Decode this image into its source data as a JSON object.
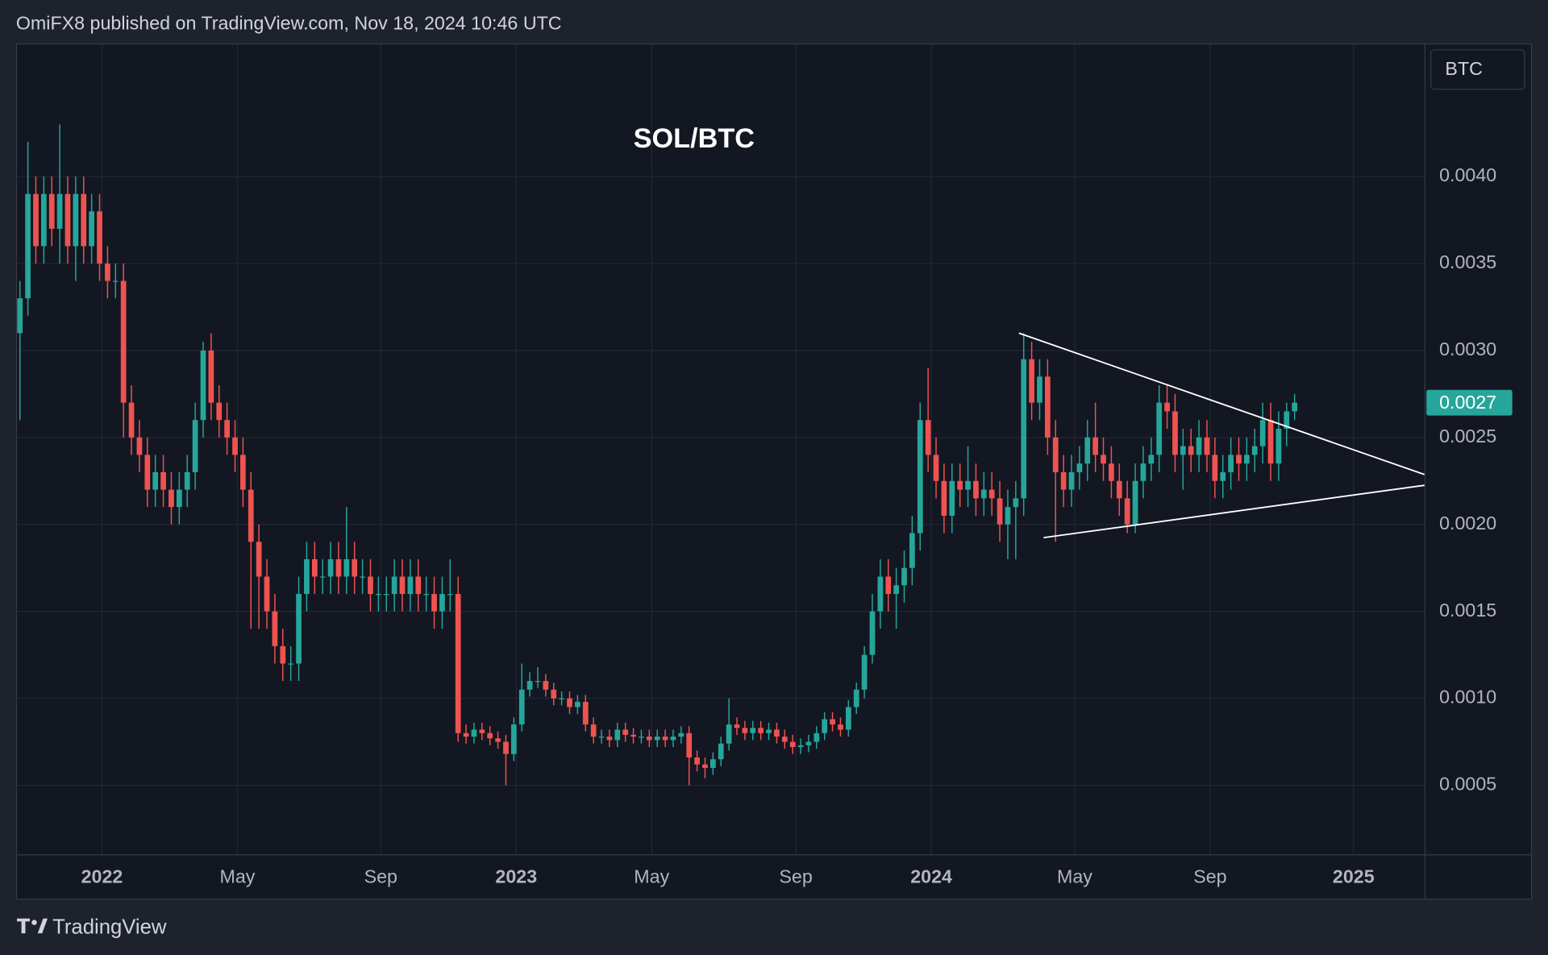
{
  "header": "OmiFX8 published on TradingView.com, Nov 18, 2024 10:46 UTC",
  "footer": "TradingView",
  "currency_button": "BTC",
  "chart_data": {
    "type": "candlestick",
    "title": "SOL/BTC",
    "up_color": "#26a69a",
    "down_color": "#ef5350",
    "grid": true,
    "xlim": [
      -0.37,
      176.3
    ],
    "xticks": [
      {
        "value": 10.3,
        "label": "2022"
      },
      {
        "value": 27.3,
        "label": "May"
      },
      {
        "value": 45.3,
        "label": "Sep"
      },
      {
        "value": 62.3,
        "label": "2023"
      },
      {
        "value": 79.3,
        "label": "May"
      },
      {
        "value": 97.4,
        "label": "Sep"
      },
      {
        "value": 114.4,
        "label": "2024"
      },
      {
        "value": 132.4,
        "label": "May"
      },
      {
        "value": 149.4,
        "label": "Sep"
      },
      {
        "value": 167.4,
        "label": "2025"
      }
    ],
    "ylim": [
      0.000103,
      0.00476
    ],
    "yticks": [
      0.0005,
      {
        "value": 0.001,
        "label": "0.0010"
      },
      0.0015,
      {
        "value": 0.002,
        "label": "0.0020"
      },
      0.0025,
      {
        "value": 0.003,
        "label": "0.0030"
      },
      0.0035,
      {
        "value": 0.004,
        "label": "0.0040"
      }
    ],
    "last_price": 0.0027,
    "open": [
      0.0031,
      0.0033,
      0.0039,
      0.0036,
      0.0039,
      0.0037,
      0.0039,
      0.0036,
      0.0039,
      0.0036,
      0.0038,
      0.0035,
      0.0034,
      0.0034,
      0.0027,
      0.0025,
      0.0024,
      0.0022,
      0.0023,
      0.0022,
      0.0021,
      0.0022,
      0.0023,
      0.0026,
      0.003,
      0.0027,
      0.0026,
      0.0025,
      0.0024,
      0.0022,
      0.0019,
      0.0017,
      0.0015,
      0.0013,
      0.0012,
      0.0012,
      0.0016,
      0.0018,
      0.0017,
      0.0017,
      0.0018,
      0.0017,
      0.0018,
      0.0017,
      0.0017,
      0.0016,
      0.0016,
      0.0016,
      0.0017,
      0.0016,
      0.0017,
      0.0016,
      0.0016,
      0.0015,
      0.0016,
      0.0016,
      0.0008,
      0.00078,
      0.00082,
      0.0008,
      0.00077,
      0.00075,
      0.00068,
      0.00085,
      0.00105,
      0.0011,
      0.0011,
      0.00105,
      0.001,
      0.001,
      0.00095,
      0.00098,
      0.00085,
      0.00078,
      0.00078,
      0.00076,
      0.00082,
      0.00079,
      0.00078,
      0.00078,
      0.00076,
      0.00078,
      0.00076,
      0.00078,
      0.0008,
      0.00066,
      0.00062,
      0.0006,
      0.00065,
      0.00074,
      0.00085,
      0.00083,
      0.0008,
      0.00083,
      0.0008,
      0.00082,
      0.00078,
      0.00075,
      0.00072,
      0.00073,
      0.00075,
      0.0008,
      0.00088,
      0.00085,
      0.00082,
      0.00095,
      0.00105,
      0.00125,
      0.0015,
      0.0017,
      0.0016,
      0.00165,
      0.00175,
      0.00195,
      0.0026,
      0.0024,
      0.00225,
      0.00205,
      0.00225,
      0.0022,
      0.00225,
      0.00215,
      0.0022,
      0.00215,
      0.002,
      0.0021,
      0.00215,
      0.00295,
      0.0027,
      0.00285,
      0.0025,
      0.0023,
      0.0022,
      0.0023,
      0.00235,
      0.0025,
      0.0024,
      0.00235,
      0.00225,
      0.00215,
      0.002,
      0.00225,
      0.00235,
      0.0024,
      0.0027,
      0.00265,
      0.0024,
      0.00245,
      0.0024,
      0.0025,
      0.0024,
      0.00225,
      0.0023,
      0.0024,
      0.00235,
      0.0024,
      0.00245,
      0.0026,
      0.00235,
      0.00255,
      0.00265
    ],
    "high": [
      0.0034,
      0.0042,
      0.004,
      0.004,
      0.004,
      0.0043,
      0.004,
      0.004,
      0.004,
      0.0039,
      0.0039,
      0.0036,
      0.0035,
      0.0035,
      0.0028,
      0.0026,
      0.0025,
      0.0024,
      0.0024,
      0.0023,
      0.0023,
      0.0024,
      0.0027,
      0.00305,
      0.0031,
      0.0028,
      0.0027,
      0.0026,
      0.0025,
      0.0023,
      0.002,
      0.0018,
      0.0016,
      0.0014,
      0.0013,
      0.0017,
      0.0019,
      0.0019,
      0.0018,
      0.0019,
      0.0019,
      0.0021,
      0.0019,
      0.0018,
      0.0018,
      0.0017,
      0.0017,
      0.0018,
      0.0018,
      0.0018,
      0.0018,
      0.0017,
      0.0017,
      0.0017,
      0.0018,
      0.0017,
      0.00085,
      0.00086,
      0.00086,
      0.00084,
      0.00081,
      0.00079,
      0.00089,
      0.0012,
      0.00115,
      0.00118,
      0.00114,
      0.00109,
      0.00104,
      0.00104,
      0.00102,
      0.00102,
      0.00089,
      0.00082,
      0.00082,
      0.00086,
      0.00086,
      0.00083,
      0.00082,
      0.00082,
      0.00082,
      0.00082,
      0.00082,
      0.00084,
      0.00084,
      0.0007,
      0.00066,
      0.00069,
      0.00078,
      0.001,
      0.00089,
      0.00087,
      0.00087,
      0.00087,
      0.00086,
      0.00086,
      0.00082,
      0.00079,
      0.00077,
      0.00079,
      0.00084,
      0.00092,
      0.00092,
      0.00089,
      0.00099,
      0.00109,
      0.0013,
      0.0016,
      0.0018,
      0.0018,
      0.00175,
      0.00185,
      0.00205,
      0.0027,
      0.0029,
      0.0025,
      0.00235,
      0.00235,
      0.00235,
      0.00245,
      0.00235,
      0.0023,
      0.0023,
      0.00225,
      0.0022,
      0.00225,
      0.0031,
      0.00305,
      0.00295,
      0.00295,
      0.0026,
      0.0024,
      0.0024,
      0.00245,
      0.0026,
      0.0027,
      0.0025,
      0.00245,
      0.00235,
      0.00225,
      0.00235,
      0.00245,
      0.0025,
      0.0028,
      0.0028,
      0.00275,
      0.00255,
      0.00255,
      0.0026,
      0.0026,
      0.0025,
      0.0024,
      0.0025,
      0.0025,
      0.0025,
      0.00255,
      0.0027,
      0.0027,
      0.00265,
      0.0027,
      0.00275
    ],
    "low": [
      0.0026,
      0.0032,
      0.0035,
      0.0035,
      0.0036,
      0.0035,
      0.0035,
      0.0034,
      0.0035,
      0.0035,
      0.0034,
      0.0033,
      0.0033,
      0.0025,
      0.0024,
      0.0023,
      0.0021,
      0.0021,
      0.0021,
      0.002,
      0.002,
      0.0021,
      0.0022,
      0.0025,
      0.0026,
      0.0025,
      0.0024,
      0.0023,
      0.0021,
      0.0014,
      0.0014,
      0.0014,
      0.0012,
      0.0011,
      0.0011,
      0.0011,
      0.0015,
      0.0016,
      0.0016,
      0.0016,
      0.0016,
      0.0016,
      0.0016,
      0.0016,
      0.0015,
      0.0015,
      0.0015,
      0.0015,
      0.0015,
      0.0015,
      0.0015,
      0.0015,
      0.0014,
      0.0014,
      0.0015,
      0.00075,
      0.00074,
      0.00074,
      0.00076,
      0.00073,
      0.00071,
      0.0005,
      0.00064,
      0.00081,
      0.00101,
      0.00106,
      0.00101,
      0.00096,
      0.00096,
      0.00091,
      0.00091,
      0.00081,
      0.00074,
      0.00074,
      0.00072,
      0.00072,
      0.00075,
      0.00074,
      0.00074,
      0.00072,
      0.00072,
      0.00072,
      0.00072,
      0.00074,
      0.0005,
      0.00058,
      0.00054,
      0.00056,
      0.00061,
      0.0007,
      0.00079,
      0.00076,
      0.00076,
      0.00076,
      0.00076,
      0.00074,
      0.00071,
      0.00068,
      0.00068,
      0.00069,
      0.00071,
      0.00076,
      0.00081,
      0.00078,
      0.00078,
      0.00091,
      0.001,
      0.0012,
      0.0014,
      0.0015,
      0.0014,
      0.00155,
      0.00165,
      0.00185,
      0.0023,
      0.00215,
      0.00195,
      0.00195,
      0.0021,
      0.0021,
      0.00205,
      0.00205,
      0.00205,
      0.0019,
      0.0018,
      0.0018,
      0.00205,
      0.0026,
      0.0026,
      0.0024,
      0.0019,
      0.0021,
      0.0021,
      0.0022,
      0.00225,
      0.0023,
      0.00225,
      0.00215,
      0.00205,
      0.00195,
      0.00195,
      0.00215,
      0.00225,
      0.0023,
      0.00255,
      0.0023,
      0.0022,
      0.0023,
      0.0023,
      0.0023,
      0.00215,
      0.00215,
      0.0022,
      0.00225,
      0.00225,
      0.0023,
      0.00235,
      0.00225,
      0.00225,
      0.00245,
      0.0026
    ],
    "close": [
      0.0033,
      0.0039,
      0.0036,
      0.0039,
      0.0037,
      0.0039,
      0.0036,
      0.0039,
      0.0036,
      0.0038,
      0.0035,
      0.0034,
      0.0034,
      0.0027,
      0.0025,
      0.0024,
      0.0022,
      0.0023,
      0.0022,
      0.0021,
      0.0022,
      0.0023,
      0.0026,
      0.003,
      0.0027,
      0.0026,
      0.0025,
      0.0024,
      0.0022,
      0.0019,
      0.0017,
      0.0015,
      0.0013,
      0.0012,
      0.0012,
      0.0016,
      0.0018,
      0.0017,
      0.0017,
      0.0018,
      0.0017,
      0.0018,
      0.0017,
      0.0017,
      0.0016,
      0.0016,
      0.0016,
      0.0017,
      0.0016,
      0.0017,
      0.0016,
      0.0016,
      0.0015,
      0.0016,
      0.0016,
      0.0008,
      0.00078,
      0.00082,
      0.0008,
      0.00077,
      0.00075,
      0.00068,
      0.00085,
      0.00105,
      0.0011,
      0.0011,
      0.00105,
      0.001,
      0.001,
      0.00095,
      0.00098,
      0.00085,
      0.00078,
      0.00078,
      0.00076,
      0.00082,
      0.00079,
      0.00078,
      0.00078,
      0.00076,
      0.00078,
      0.00076,
      0.00078,
      0.0008,
      0.00066,
      0.00062,
      0.0006,
      0.00065,
      0.00074,
      0.00085,
      0.00083,
      0.0008,
      0.00083,
      0.0008,
      0.00082,
      0.00078,
      0.00075,
      0.00072,
      0.00073,
      0.00075,
      0.0008,
      0.00088,
      0.00085,
      0.00082,
      0.00095,
      0.00105,
      0.00125,
      0.0015,
      0.0017,
      0.0016,
      0.00165,
      0.00175,
      0.00195,
      0.0026,
      0.0024,
      0.00225,
      0.00205,
      0.00225,
      0.0022,
      0.00225,
      0.00215,
      0.0022,
      0.00215,
      0.002,
      0.0021,
      0.00215,
      0.00295,
      0.0027,
      0.00285,
      0.0025,
      0.0023,
      0.0022,
      0.0023,
      0.00235,
      0.0025,
      0.0024,
      0.00235,
      0.00225,
      0.00215,
      0.002,
      0.00225,
      0.00235,
      0.0024,
      0.0027,
      0.00265,
      0.0024,
      0.00245,
      0.0024,
      0.0025,
      0.0024,
      0.00225,
      0.0023,
      0.0024,
      0.00235,
      0.0024,
      0.00245,
      0.0026,
      0.00235,
      0.00255,
      0.00265,
      0.0027
    ],
    "trendlines": [
      {
        "color": "#ffffff",
        "points": [
          [
            125.4,
            0.0031
          ],
          [
            176.3,
            0.002287
          ]
        ]
      },
      {
        "color": "#ffffff",
        "points": [
          [
            128.5,
            0.001924
          ],
          [
            176.3,
            0.002225
          ]
        ]
      }
    ]
  }
}
